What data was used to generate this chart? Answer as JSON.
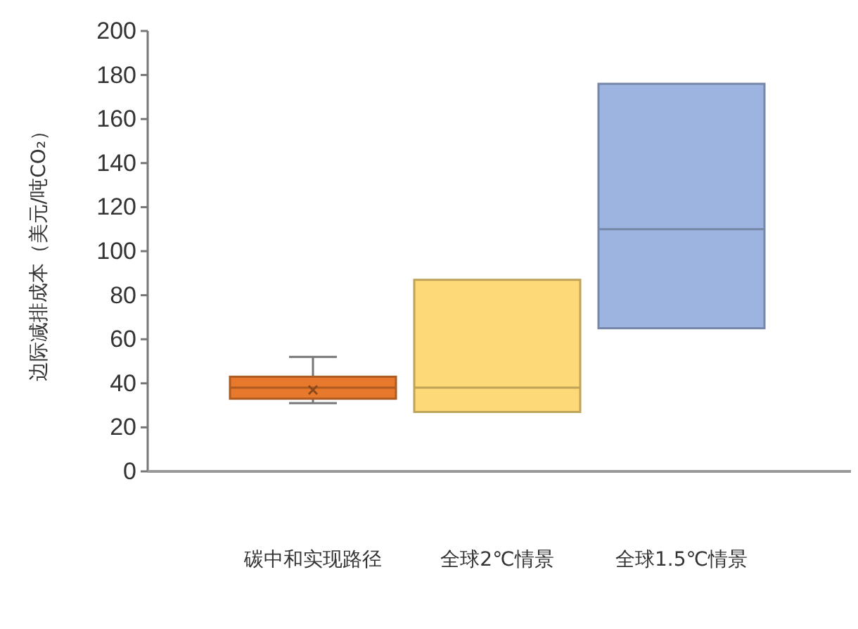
{
  "chart_data": {
    "type": "box",
    "ylabel": "边际减排成本（美元/吨CO₂）",
    "categories": [
      "碳中和实现路径",
      "全球2℃情景",
      "全球1.5℃情景"
    ],
    "colors": [
      "#e8792c",
      "#fdd977",
      "#9db4e0"
    ],
    "boxes": [
      {
        "low": 31,
        "q1": 33,
        "median": 38,
        "q3": 43,
        "high": 52,
        "mean": 37
      },
      {
        "low": 27,
        "q1": 27,
        "median": 38,
        "q3": 87,
        "high": 87
      },
      {
        "low": 65,
        "q1": 65,
        "median": 110,
        "q3": 176,
        "high": 176
      }
    ],
    "ylim": [
      0,
      200
    ],
    "yticks": [
      0,
      20,
      40,
      60,
      80,
      100,
      120,
      140,
      160,
      180,
      200
    ],
    "grid": false
  }
}
